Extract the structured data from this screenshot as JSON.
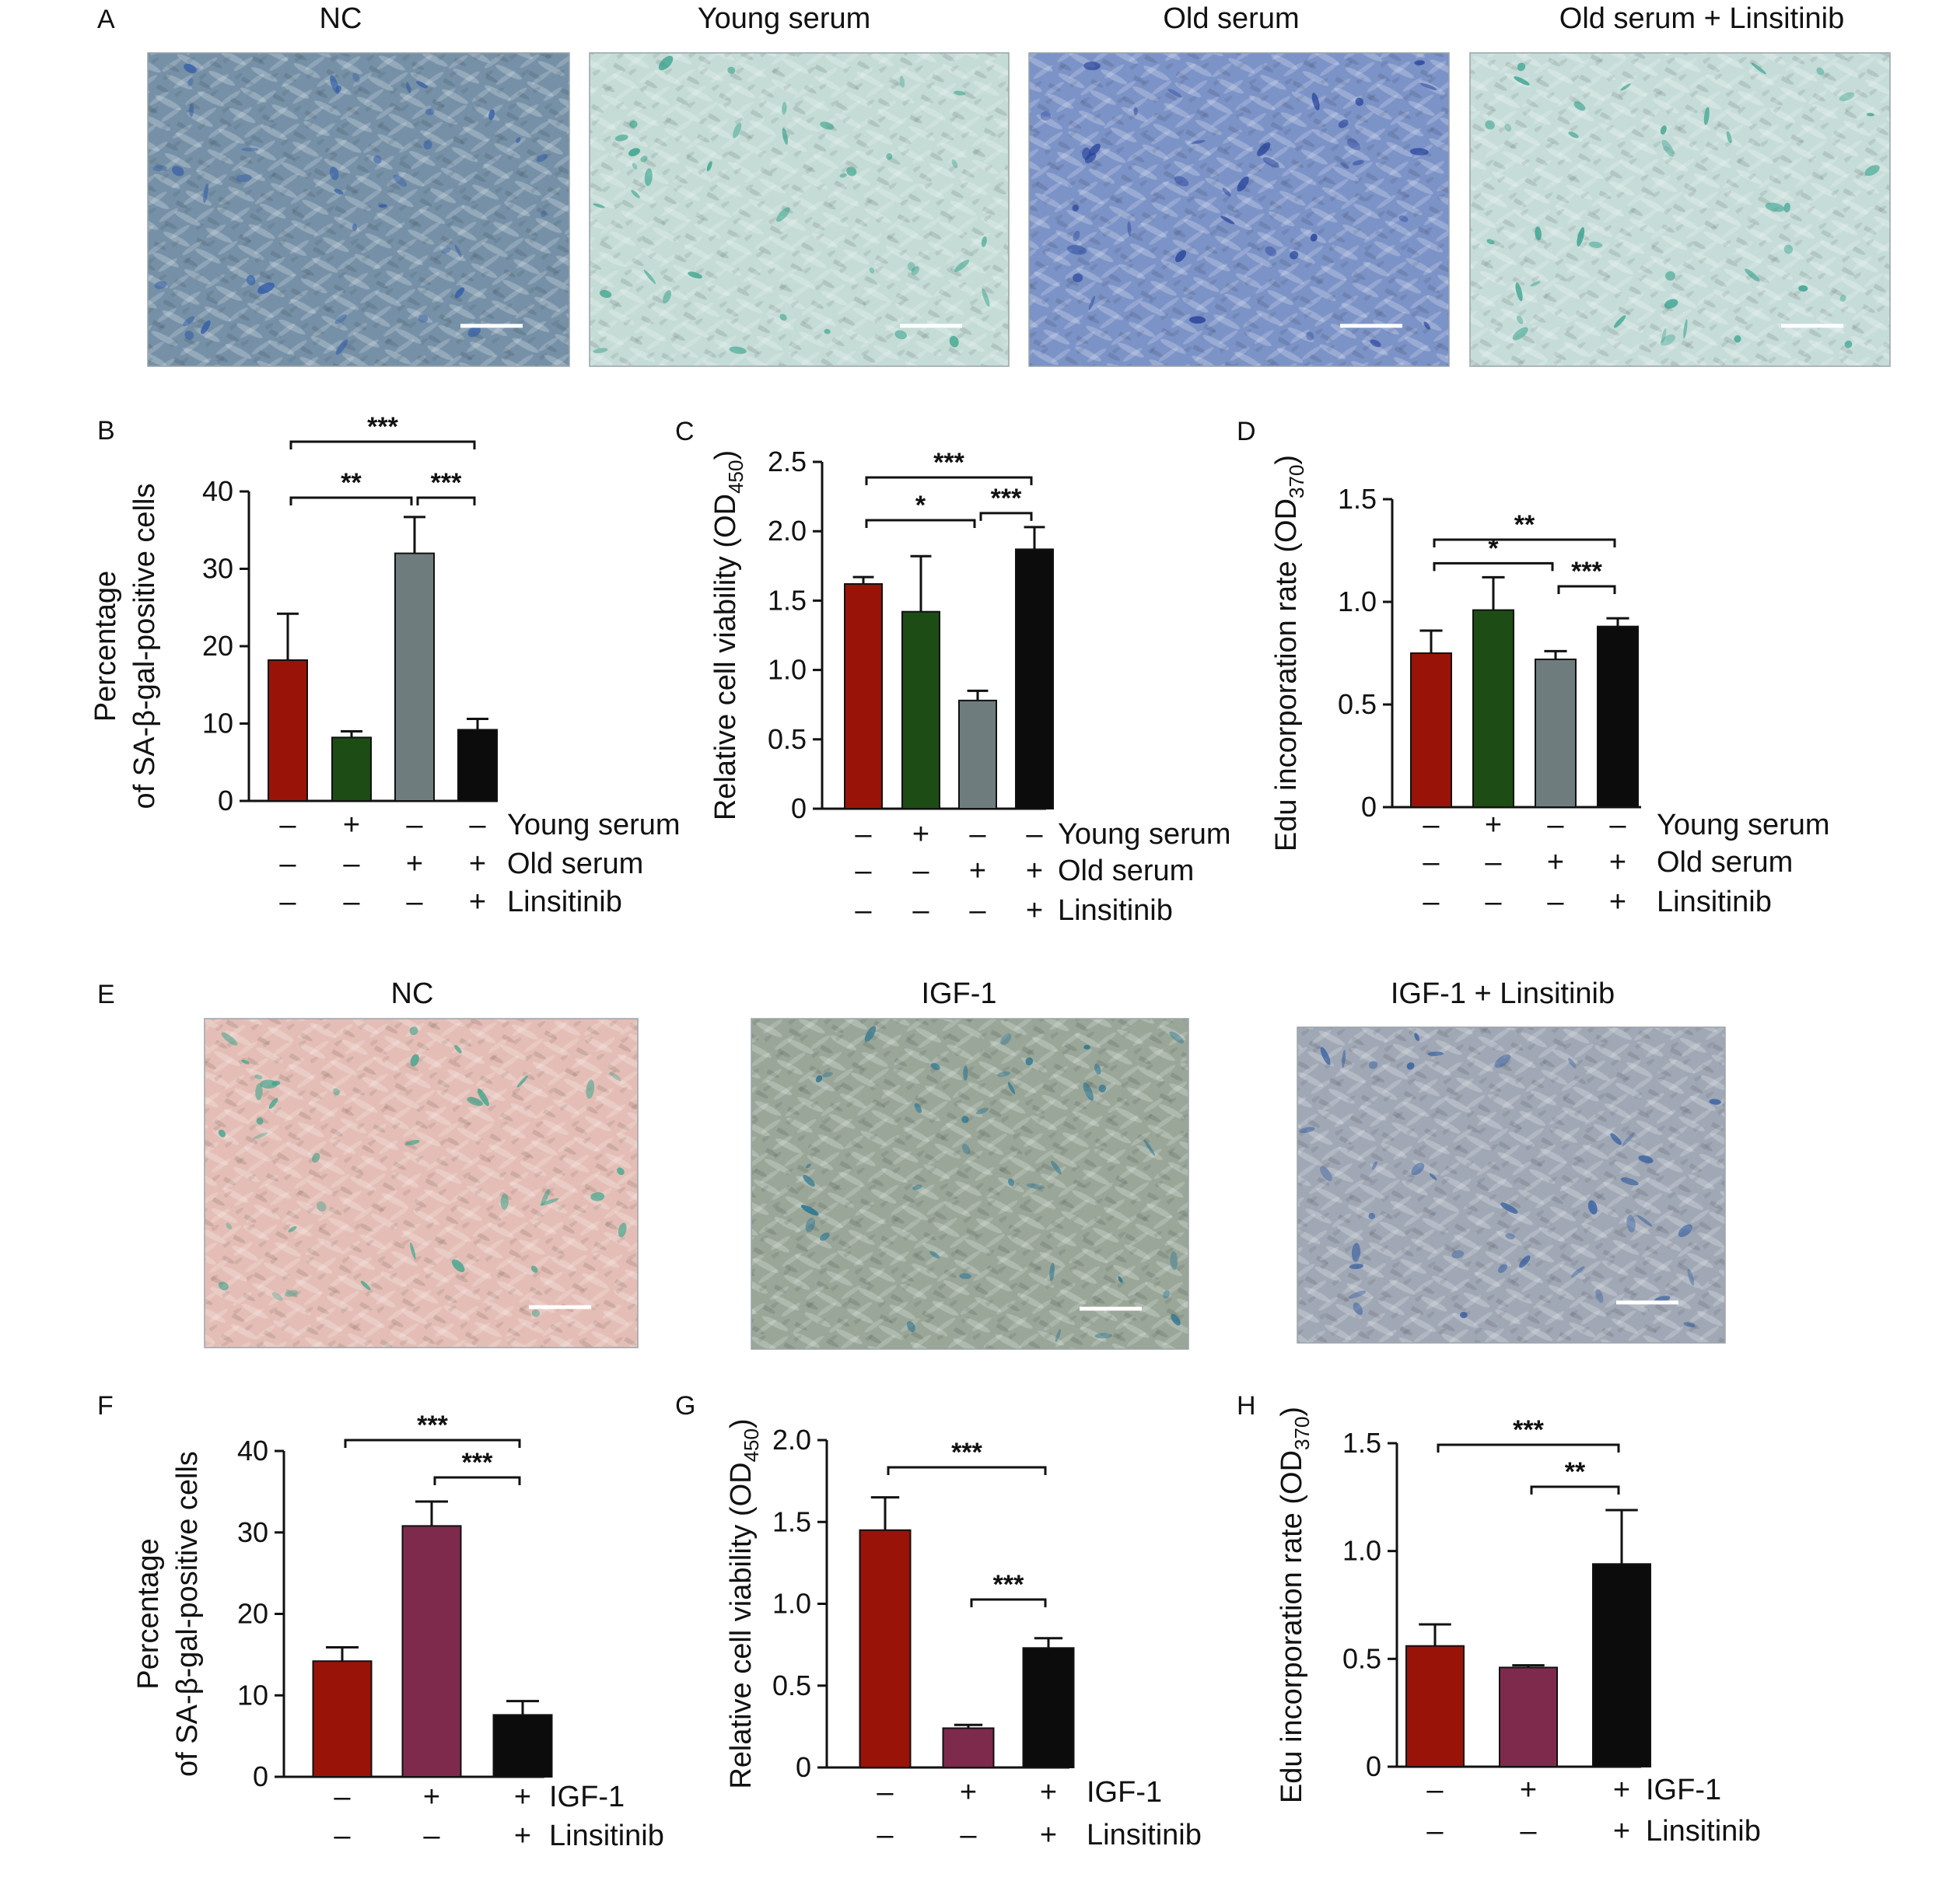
{
  "panels_images": [
    {
      "letter": "A",
      "titles": [
        "NC",
        "Young serum",
        "Old serum",
        "Old serum + Linsitinib"
      ],
      "micrographs": [
        {
          "base": "#7f98ad",
          "tint": "#6e89a2",
          "stain": "#2f5aa8",
          "scalebar": true
        },
        {
          "base": "#cfe1dc",
          "tint": "#b9d6cf",
          "stain": "#2e9f86",
          "scalebar": true
        },
        {
          "base": "#6f86bf",
          "tint": "#8a9fd0",
          "stain": "#233f99",
          "scalebar": true
        },
        {
          "base": "#cbe0db",
          "tint": "#c2d8d6",
          "stain": "#2f9f8a",
          "scalebar": true
        }
      ]
    },
    {
      "letter": "E",
      "titles": [
        "NC",
        "IGF-1",
        "IGF-1 + Linsitinib"
      ],
      "micrographs": [
        {
          "base": "#e8c4bd",
          "tint": "#e0b8b0",
          "stain": "#3aa58a",
          "scalebar": true
        },
        {
          "base": "#8fa098",
          "tint": "#a3ab98",
          "stain": "#1f6f8f",
          "scalebar": true
        },
        {
          "base": "#9aa2b0",
          "tint": "#a6adba",
          "stain": "#2f5aa0",
          "scalebar": true
        }
      ]
    }
  ],
  "chart_data": [
    {
      "panel": "B",
      "type": "bar",
      "ylabel_lines": [
        "Percentage",
        "of SA-β-gal-positive cells"
      ],
      "ylim": [
        0,
        40
      ],
      "yticks": [
        "0",
        "10",
        "20",
        "30",
        "40"
      ],
      "series": [
        {
          "values": [
            18.2,
            8.2,
            32.0,
            9.2
          ],
          "errors": [
            6.0,
            0.8,
            4.7,
            1.4
          ],
          "colors": [
            "#9a1308",
            "#1d4d14",
            "#6e7c7e",
            "#0c0c0c"
          ]
        }
      ],
      "conditions": [
        {
          "label": "Young serum",
          "signs": [
            "–",
            "+",
            "–",
            "–"
          ]
        },
        {
          "label": "Old serum",
          "signs": [
            "–",
            "–",
            "+",
            "+"
          ]
        },
        {
          "label": "Linsitinib",
          "signs": [
            "–",
            "–",
            "–",
            "+"
          ]
        }
      ],
      "significance": [
        {
          "from": 0,
          "to": 3,
          "label": "***"
        },
        {
          "from": 0,
          "to": 2,
          "label": "**"
        },
        {
          "from": 2,
          "to": 3,
          "label": "***"
        }
      ]
    },
    {
      "panel": "C",
      "type": "bar",
      "ylabel": "Relative cell viability (OD",
      "ylabel_sub": "450",
      "ylabel_end": ")",
      "ylim": [
        0,
        2.5
      ],
      "yticks": [
        "0",
        "0.5",
        "1.0",
        "1.5",
        "2.0",
        "2.5"
      ],
      "series": [
        {
          "values": [
            1.62,
            1.42,
            0.78,
            1.87
          ],
          "errors": [
            0.05,
            0.4,
            0.07,
            0.16
          ],
          "colors": [
            "#9a1308",
            "#1d4d14",
            "#6e7c7e",
            "#0c0c0c"
          ]
        }
      ],
      "conditions": [
        {
          "label": "Young serum",
          "signs": [
            "–",
            "+",
            "–",
            "–"
          ]
        },
        {
          "label": "Old serum",
          "signs": [
            "–",
            "–",
            "+",
            "+"
          ]
        },
        {
          "label": "Linsitinib",
          "signs": [
            "–",
            "–",
            "–",
            "+"
          ]
        }
      ],
      "significance": [
        {
          "from": 0,
          "to": 3,
          "label": "***"
        },
        {
          "from": 0,
          "to": 2,
          "label": "*"
        },
        {
          "from": 2,
          "to": 3,
          "label": "***"
        }
      ]
    },
    {
      "panel": "D",
      "type": "bar",
      "ylabel": "Edu incorporation rate (OD",
      "ylabel_sub": "370",
      "ylabel_end": ")",
      "ylim": [
        0,
        1.5
      ],
      "yticks": [
        "0",
        "0.5",
        "1.0",
        "1.5"
      ],
      "series": [
        {
          "values": [
            0.75,
            0.96,
            0.72,
            0.88
          ],
          "errors": [
            0.11,
            0.16,
            0.04,
            0.04
          ],
          "colors": [
            "#9a1308",
            "#1d4d14",
            "#6e7c7e",
            "#0c0c0c"
          ]
        }
      ],
      "conditions": [
        {
          "label": "Young serum",
          "signs": [
            "–",
            "+",
            "–",
            "–"
          ]
        },
        {
          "label": "Old serum",
          "signs": [
            "–",
            "–",
            "+",
            "+"
          ]
        },
        {
          "label": "Linsitinib",
          "signs": [
            "–",
            "–",
            "–",
            "+"
          ]
        }
      ],
      "significance": [
        {
          "from": 0,
          "to": 3,
          "label": "**"
        },
        {
          "from": 0,
          "to": 2,
          "label": "*"
        },
        {
          "from": 2,
          "to": 3,
          "label": "***"
        }
      ]
    },
    {
      "panel": "F",
      "type": "bar",
      "ylabel_lines": [
        "Percentage",
        "of SA-β-gal-positive cells"
      ],
      "ylim": [
        0,
        40
      ],
      "yticks": [
        "0",
        "10",
        "20",
        "30",
        "40"
      ],
      "series": [
        {
          "values": [
            14.2,
            30.8,
            7.6
          ],
          "errors": [
            1.7,
            3.0,
            1.7
          ],
          "colors": [
            "#9a1308",
            "#7e2a4c",
            "#0c0c0c"
          ]
        }
      ],
      "conditions": [
        {
          "label": "IGF-1",
          "signs": [
            "–",
            "+",
            "+"
          ]
        },
        {
          "label": "Linsitinib",
          "signs": [
            "–",
            "–",
            "+"
          ]
        }
      ],
      "significance": [
        {
          "from": 0,
          "to": 2,
          "label": "***"
        },
        {
          "from": 1,
          "to": 2,
          "label": "***"
        }
      ]
    },
    {
      "panel": "G",
      "type": "bar",
      "ylabel": "Relative cell viability (OD",
      "ylabel_sub": "450",
      "ylabel_end": ")",
      "ylim": [
        0,
        2.0
      ],
      "yticks": [
        "0",
        "0.5",
        "1.0",
        "1.5",
        "2.0"
      ],
      "series": [
        {
          "values": [
            1.45,
            0.24,
            0.73
          ],
          "errors": [
            0.2,
            0.02,
            0.06
          ],
          "colors": [
            "#9a1308",
            "#7e2a4c",
            "#0c0c0c"
          ]
        }
      ],
      "conditions": [
        {
          "label": "IGF-1",
          "signs": [
            "–",
            "+",
            "+"
          ]
        },
        {
          "label": "Linsitinib",
          "signs": [
            "–",
            "–",
            "+"
          ]
        }
      ],
      "significance": [
        {
          "from": 0,
          "to": 2,
          "label": "***"
        },
        {
          "from": 1,
          "to": 2,
          "label": "***"
        }
      ]
    },
    {
      "panel": "H",
      "type": "bar",
      "ylabel": "Edu incorporation rate (OD",
      "ylabel_sub": "370",
      "ylabel_end": ")",
      "ylim": [
        0,
        1.5
      ],
      "yticks": [
        "0",
        "0.5",
        "1.0",
        "1.5"
      ],
      "series": [
        {
          "values": [
            0.56,
            0.46,
            0.94
          ],
          "errors": [
            0.1,
            0.01,
            0.25
          ],
          "colors": [
            "#9a1308",
            "#7e2a4c",
            "#0c0c0c"
          ]
        }
      ],
      "conditions": [
        {
          "label": "IGF-1",
          "signs": [
            "–",
            "+",
            "+"
          ]
        },
        {
          "label": "Linsitinib",
          "signs": [
            "–",
            "–",
            "+"
          ]
        }
      ],
      "significance": [
        {
          "from": 0,
          "to": 2,
          "label": "***"
        },
        {
          "from": 1,
          "to": 2,
          "label": "**"
        }
      ]
    }
  ]
}
